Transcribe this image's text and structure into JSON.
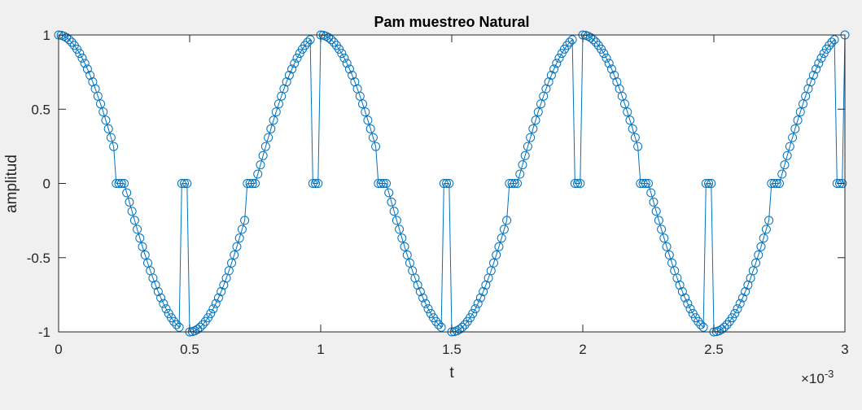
{
  "chart_data": {
    "type": "line",
    "title": "Pam muestreo Natural",
    "xlabel": "t",
    "ylabel": "amplitud",
    "x_exponent_label": "×10",
    "x_exponent_power": "-3",
    "xlim": [
      0,
      3
    ],
    "ylim": [
      -1,
      1
    ],
    "x_ticks": [
      0,
      0.5,
      1,
      1.5,
      2,
      2.5,
      3
    ],
    "x_tick_labels": [
      "0",
      "0.5",
      "1",
      "1.5",
      "2",
      "2.5",
      "3"
    ],
    "y_ticks": [
      -1,
      -0.5,
      0,
      0.5,
      1
    ],
    "y_tick_labels": [
      "-1",
      "-0.5",
      "0",
      "0.5",
      "1"
    ],
    "grid": false,
    "legend": "none",
    "series": [
      {
        "marker": "circle",
        "line_color": "#0072BD",
        "signal": {
          "function": "cos",
          "amplitude": 1,
          "frequency_hz": 1000,
          "t_unit_scale": 0.001
        },
        "sample_count": 301,
        "gate_pattern": {
          "period": 25,
          "on": 22,
          "off": 3
        }
      }
    ]
  }
}
